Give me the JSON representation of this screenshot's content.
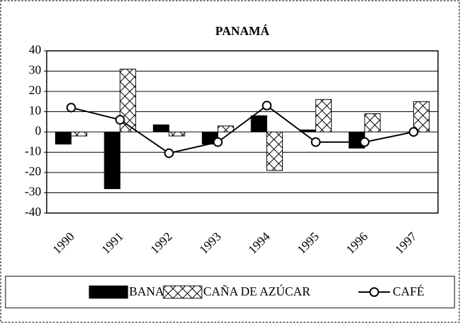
{
  "chart_data": {
    "type": "bar",
    "title": "PANAMÁ",
    "categories": [
      "1990",
      "1991",
      "1992",
      "1993",
      "1994",
      "1995",
      "1996",
      "1997"
    ],
    "series": [
      {
        "name": "BANANO",
        "type": "bar",
        "color": "#000000",
        "values": [
          -6,
          -28,
          3.5,
          -6,
          8,
          1,
          -8,
          0
        ]
      },
      {
        "name": "CAÑA DE AZÚCAR",
        "type": "bar",
        "color": "#ffffff",
        "values": [
          -2,
          31,
          -2,
          3,
          -19,
          16,
          9,
          15
        ]
      },
      {
        "name": "CAFÉ",
        "type": "line",
        "color": "#000000",
        "values": [
          12,
          6,
          -10.5,
          -5,
          13,
          -5,
          -5,
          0
        ]
      }
    ],
    "ylim": [
      -40,
      40
    ],
    "yticks": [
      -40,
      -30,
      -20,
      -10,
      0,
      10,
      20,
      30,
      40
    ],
    "grid": true,
    "legend": "bottom"
  }
}
